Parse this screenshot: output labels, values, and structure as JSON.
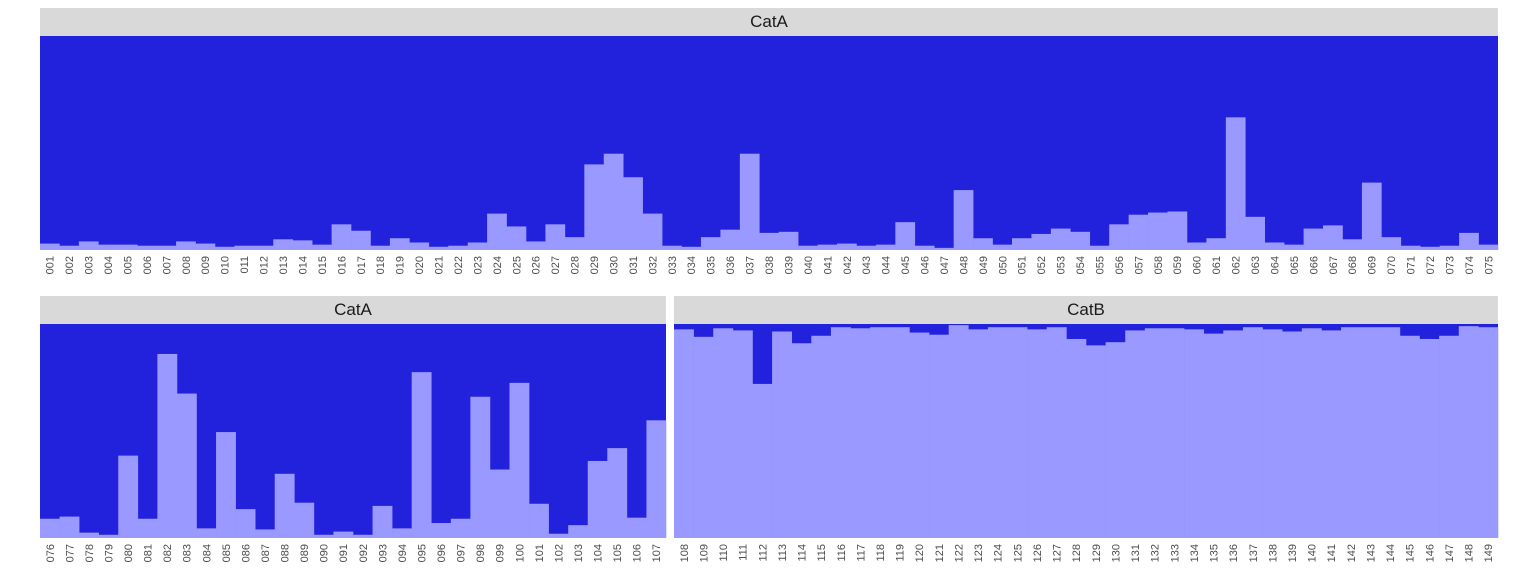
{
  "colors": {
    "background_class": "#2222dd",
    "bar": "#9999ff",
    "strip": "#d9d9d9"
  },
  "chart_data": [
    {
      "type": "bar",
      "stacked": true,
      "facet": "CatA",
      "ylim": [
        0,
        1
      ],
      "categories": [
        "001",
        "002",
        "003",
        "004",
        "005",
        "006",
        "007",
        "008",
        "009",
        "010",
        "011",
        "012",
        "013",
        "014",
        "015",
        "016",
        "017",
        "018",
        "019",
        "020",
        "021",
        "022",
        "023",
        "024",
        "025",
        "026",
        "027",
        "028",
        "029",
        "030",
        "031",
        "032",
        "033",
        "034",
        "035",
        "036",
        "037",
        "038",
        "039",
        "040",
        "041",
        "042",
        "043",
        "044",
        "045",
        "046",
        "047",
        "048",
        "049",
        "050",
        "051",
        "052",
        "053",
        "054",
        "055",
        "056",
        "057",
        "058",
        "059",
        "060",
        "061",
        "062",
        "063",
        "064",
        "065",
        "066",
        "067",
        "068",
        "069",
        "070",
        "071",
        "072",
        "073",
        "074",
        "075"
      ],
      "values": [
        0.03,
        0.02,
        0.04,
        0.025,
        0.025,
        0.02,
        0.02,
        0.04,
        0.03,
        0.015,
        0.02,
        0.02,
        0.05,
        0.045,
        0.025,
        0.12,
        0.09,
        0.02,
        0.055,
        0.035,
        0.015,
        0.02,
        0.035,
        0.17,
        0.11,
        0.04,
        0.12,
        0.06,
        0.4,
        0.45,
        0.34,
        0.17,
        0.02,
        0.015,
        0.06,
        0.095,
        0.45,
        0.08,
        0.085,
        0.02,
        0.025,
        0.03,
        0.02,
        0.025,
        0.13,
        0.02,
        0.01,
        0.28,
        0.055,
        0.025,
        0.055,
        0.075,
        0.1,
        0.085,
        0.02,
        0.12,
        0.165,
        0.175,
        0.18,
        0.035,
        0.055,
        0.62,
        0.155,
        0.035,
        0.025,
        0.1,
        0.115,
        0.05,
        0.315,
        0.06,
        0.02,
        0.015,
        0.02,
        0.08,
        0.025
      ]
    },
    {
      "type": "bar",
      "stacked": true,
      "facet": "CatA",
      "ylim": [
        0,
        1
      ],
      "categories": [
        "076",
        "077",
        "078",
        "079",
        "080",
        "081",
        "082",
        "083",
        "084",
        "085",
        "086",
        "087",
        "088",
        "089",
        "090",
        "091",
        "092",
        "093",
        "094",
        "095",
        "096",
        "097",
        "098",
        "099",
        "100",
        "101",
        "102",
        "103",
        "104",
        "105",
        "106",
        "107"
      ],
      "values": [
        0.09,
        0.1,
        0.025,
        0.015,
        0.385,
        0.09,
        0.86,
        0.675,
        0.045,
        0.495,
        0.135,
        0.04,
        0.3,
        0.165,
        0.015,
        0.03,
        0.015,
        0.15,
        0.045,
        0.775,
        0.07,
        0.09,
        0.66,
        0.32,
        0.725,
        0.16,
        0.02,
        0.06,
        0.36,
        0.42,
        0.095,
        0.55
      ]
    },
    {
      "type": "bar",
      "stacked": true,
      "facet": "CatB",
      "ylim": [
        0,
        1
      ],
      "categories": [
        "108",
        "109",
        "110",
        "111",
        "112",
        "113",
        "114",
        "115",
        "116",
        "117",
        "118",
        "119",
        "120",
        "121",
        "122",
        "123",
        "124",
        "125",
        "126",
        "127",
        "128",
        "129",
        "130",
        "131",
        "132",
        "133",
        "134",
        "135",
        "136",
        "137",
        "138",
        "139",
        "140",
        "141",
        "142",
        "143",
        "144",
        "145",
        "146",
        "147",
        "148",
        "149"
      ],
      "values": [
        0.975,
        0.94,
        0.98,
        0.97,
        0.72,
        0.965,
        0.91,
        0.945,
        0.985,
        0.98,
        0.985,
        0.985,
        0.96,
        0.95,
        0.995,
        0.975,
        0.985,
        0.985,
        0.975,
        0.985,
        0.93,
        0.9,
        0.915,
        0.97,
        0.98,
        0.98,
        0.975,
        0.955,
        0.97,
        0.985,
        0.975,
        0.965,
        0.98,
        0.97,
        0.985,
        0.985,
        0.985,
        0.945,
        0.93,
        0.945,
        0.99,
        0.985
      ]
    }
  ]
}
